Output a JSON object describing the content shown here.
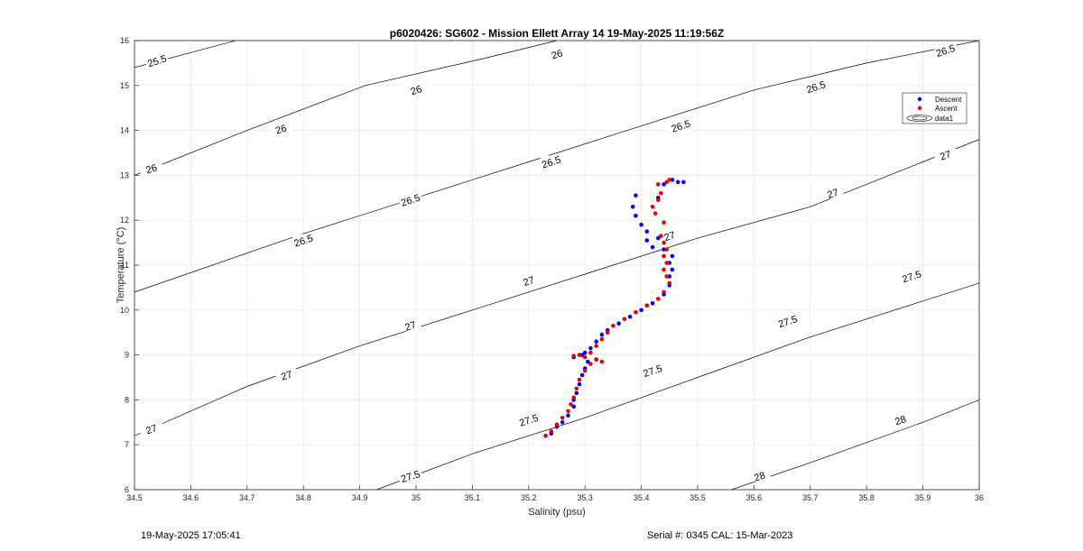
{
  "footer": {
    "timestamp": "19-May-2025 17:05:41",
    "serial_cal": "Serial #: 0345  CAL: 15-Mar-2023"
  },
  "chart_data": {
    "type": "scatter",
    "title": "p6020426: SG602 - Mission Ellett Array 14 19-May-2025 11:19:56Z",
    "xlabel": "Salinity (psu)",
    "ylabel": "Temperature (°C)",
    "xlim": [
      34.5,
      36.0
    ],
    "ylim": [
      6,
      16
    ],
    "xticks": [
      "34.5",
      "34.6",
      "34.7",
      "34.8",
      "34.9",
      "35",
      "35.1",
      "35.2",
      "35.3",
      "35.4",
      "35.5",
      "35.6",
      "35.7",
      "35.8",
      "35.9",
      "36"
    ],
    "yticks": [
      "6",
      "7",
      "8",
      "9",
      "10",
      "11",
      "12",
      "13",
      "14",
      "15",
      "16"
    ],
    "grid": true,
    "legend": {
      "position": "top-right",
      "entries": [
        "Descent",
        "Ascent",
        "data1"
      ]
    },
    "colors": {
      "descent": "#0000ff",
      "ascent": "#e60000",
      "contour": "#000000",
      "grid": "#e6e6e6"
    },
    "contours": [
      {
        "label": "25.5",
        "points": [
          [
            34.5,
            15.4
          ],
          [
            34.68,
            16.0
          ]
        ],
        "label_positions": [
          [
            34.54,
            15.55
          ]
        ]
      },
      {
        "label": "26",
        "points": [
          [
            34.5,
            13.0
          ],
          [
            34.7,
            14.0
          ],
          [
            34.91,
            15.0
          ],
          [
            35.12,
            15.6
          ],
          [
            35.25,
            16.0
          ]
        ],
        "label_positions": [
          [
            34.53,
            13.15
          ],
          [
            34.76,
            14.03
          ],
          [
            35.0,
            14.9
          ],
          [
            35.25,
            15.7
          ]
        ]
      },
      {
        "label": "26.5",
        "points": [
          [
            34.5,
            10.4
          ],
          [
            34.8,
            11.7
          ],
          [
            35.0,
            12.5
          ],
          [
            35.2,
            13.3
          ],
          [
            35.4,
            14.1
          ],
          [
            35.6,
            14.9
          ],
          [
            35.8,
            15.5
          ],
          [
            36.0,
            16.0
          ]
        ],
        "label_positions": [
          [
            34.8,
            11.55
          ],
          [
            34.99,
            12.45
          ],
          [
            35.24,
            13.3
          ],
          [
            35.47,
            14.1
          ],
          [
            35.71,
            14.97
          ],
          [
            35.94,
            15.78
          ]
        ]
      },
      {
        "label": "27",
        "points": [
          [
            34.5,
            7.2
          ],
          [
            34.7,
            8.3
          ],
          [
            34.9,
            9.2
          ],
          [
            35.1,
            10.0
          ],
          [
            35.3,
            10.8
          ],
          [
            35.5,
            11.6
          ],
          [
            35.7,
            12.3
          ],
          [
            35.9,
            13.3
          ],
          [
            36.0,
            13.8
          ]
        ],
        "label_positions": [
          [
            34.53,
            7.35
          ],
          [
            34.77,
            8.55
          ],
          [
            34.99,
            9.65
          ],
          [
            35.2,
            10.65
          ],
          [
            35.45,
            11.65
          ],
          [
            35.74,
            12.6
          ],
          [
            35.94,
            13.45
          ]
        ]
      },
      {
        "label": "27.5",
        "points": [
          [
            34.93,
            6.0
          ],
          [
            35.1,
            6.8
          ],
          [
            35.3,
            7.6
          ],
          [
            35.5,
            8.5
          ],
          [
            35.7,
            9.4
          ],
          [
            35.9,
            10.2
          ],
          [
            36.0,
            10.6
          ]
        ],
        "label_positions": [
          [
            34.99,
            6.3
          ],
          [
            35.2,
            7.55
          ],
          [
            35.42,
            8.65
          ],
          [
            35.66,
            9.75
          ],
          [
            35.88,
            10.75
          ]
        ]
      },
      {
        "label": "28",
        "points": [
          [
            35.56,
            6.0
          ],
          [
            35.7,
            6.6
          ],
          [
            35.9,
            7.5
          ],
          [
            36.0,
            8.0
          ]
        ],
        "label_positions": [
          [
            35.61,
            6.3
          ],
          [
            35.86,
            7.55
          ]
        ]
      }
    ],
    "series": [
      {
        "name": "Descent",
        "points": [
          [
            35.24,
            7.25
          ],
          [
            35.25,
            7.4
          ],
          [
            35.26,
            7.5
          ],
          [
            35.27,
            7.65
          ],
          [
            35.28,
            7.85
          ],
          [
            35.28,
            8.0
          ],
          [
            35.285,
            8.15
          ],
          [
            35.29,
            8.35
          ],
          [
            35.295,
            8.55
          ],
          [
            35.3,
            8.7
          ],
          [
            35.305,
            8.85
          ],
          [
            35.3,
            9.05
          ],
          [
            35.31,
            9.15
          ],
          [
            35.32,
            9.3
          ],
          [
            35.33,
            9.45
          ],
          [
            35.34,
            9.55
          ],
          [
            35.36,
            9.7
          ],
          [
            35.38,
            9.85
          ],
          [
            35.4,
            10.0
          ],
          [
            35.42,
            10.15
          ],
          [
            35.44,
            10.35
          ],
          [
            35.45,
            10.55
          ],
          [
            35.45,
            10.75
          ],
          [
            35.455,
            10.9
          ],
          [
            35.45,
            11.05
          ],
          [
            35.455,
            11.2
          ],
          [
            35.44,
            11.35
          ],
          [
            35.43,
            11.6
          ],
          [
            35.41,
            11.75
          ],
          [
            35.4,
            11.9
          ],
          [
            35.39,
            12.1
          ],
          [
            35.385,
            12.3
          ],
          [
            35.39,
            12.55
          ],
          [
            35.42,
            11.4
          ],
          [
            35.41,
            11.55
          ],
          [
            35.43,
            12.5
          ],
          [
            35.44,
            12.8
          ],
          [
            35.455,
            12.9
          ],
          [
            35.465,
            12.85
          ],
          [
            35.475,
            12.85
          ],
          [
            35.32,
            8.9
          ],
          [
            35.295,
            9.0
          ],
          [
            35.28,
            8.95
          ]
        ]
      },
      {
        "name": "Ascent",
        "points": [
          [
            35.23,
            7.2
          ],
          [
            35.24,
            7.3
          ],
          [
            35.25,
            7.45
          ],
          [
            35.26,
            7.6
          ],
          [
            35.27,
            7.75
          ],
          [
            35.275,
            7.9
          ],
          [
            35.28,
            8.05
          ],
          [
            35.285,
            8.25
          ],
          [
            35.29,
            8.45
          ],
          [
            35.3,
            8.65
          ],
          [
            35.31,
            8.8
          ],
          [
            35.32,
            8.9
          ],
          [
            35.3,
            8.95
          ],
          [
            35.29,
            9.0
          ],
          [
            35.28,
            8.98
          ],
          [
            35.31,
            9.05
          ],
          [
            35.32,
            9.2
          ],
          [
            35.33,
            9.35
          ],
          [
            35.34,
            9.5
          ],
          [
            35.35,
            9.65
          ],
          [
            35.37,
            9.8
          ],
          [
            35.39,
            9.95
          ],
          [
            35.41,
            10.1
          ],
          [
            35.43,
            10.25
          ],
          [
            35.44,
            10.4
          ],
          [
            35.45,
            10.6
          ],
          [
            35.445,
            10.75
          ],
          [
            35.44,
            10.9
          ],
          [
            35.445,
            11.05
          ],
          [
            35.44,
            11.2
          ],
          [
            35.445,
            11.35
          ],
          [
            35.44,
            11.5
          ],
          [
            35.435,
            11.65
          ],
          [
            35.44,
            11.95
          ],
          [
            35.425,
            12.15
          ],
          [
            35.42,
            12.3
          ],
          [
            35.43,
            12.45
          ],
          [
            35.435,
            12.6
          ],
          [
            35.43,
            12.8
          ],
          [
            35.445,
            12.85
          ],
          [
            35.45,
            12.9
          ],
          [
            35.33,
            8.85
          ]
        ]
      }
    ]
  }
}
